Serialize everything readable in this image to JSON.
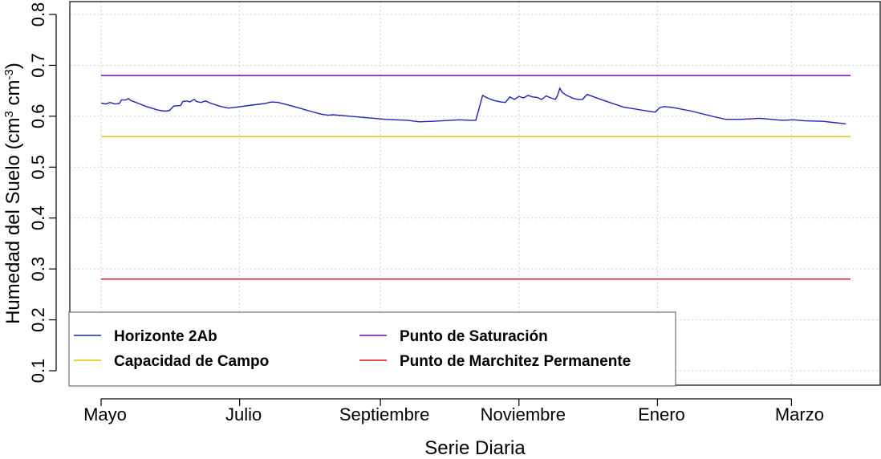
{
  "chart_data": {
    "type": "line",
    "xlabel": "Serie Diaria",
    "ylabel_parts": [
      "Humedad del Suelo (cm",
      "3",
      " cm",
      "-3",
      ")"
    ],
    "x_unit": "days since start of series",
    "x_range": [
      0,
      330
    ],
    "x_ticks": [
      {
        "day": 0,
        "label": "Mayo"
      },
      {
        "day": 61,
        "label": "Julio"
      },
      {
        "day": 123,
        "label": "Septiembre"
      },
      {
        "day": 184,
        "label": "Noviembre"
      },
      {
        "day": 245,
        "label": "Enero"
      },
      {
        "day": 304,
        "label": "Marzo"
      }
    ],
    "ylim": [
      0.07,
      0.82
    ],
    "y_ticks": [
      0.1,
      0.2,
      0.3,
      0.4,
      0.5,
      0.6,
      0.7,
      0.8
    ],
    "grid": true,
    "legend_position": "bottom-left",
    "series": [
      {
        "name": "Horizonte 2Ab",
        "color": "#1f22b8",
        "points": [
          [
            0,
            0.626
          ],
          [
            2,
            0.624
          ],
          [
            4,
            0.627
          ],
          [
            6,
            0.624
          ],
          [
            8,
            0.625
          ],
          [
            9,
            0.632
          ],
          [
            11,
            0.632
          ],
          [
            12,
            0.635
          ],
          [
            13,
            0.631
          ],
          [
            16,
            0.626
          ],
          [
            20,
            0.619
          ],
          [
            25,
            0.612
          ],
          [
            28,
            0.61
          ],
          [
            30,
            0.611
          ],
          [
            32,
            0.62
          ],
          [
            35,
            0.621
          ],
          [
            36,
            0.629
          ],
          [
            38,
            0.63
          ],
          [
            39,
            0.628
          ],
          [
            41,
            0.633
          ],
          [
            42,
            0.629
          ],
          [
            44,
            0.627
          ],
          [
            46,
            0.63
          ],
          [
            48,
            0.626
          ],
          [
            52,
            0.62
          ],
          [
            56,
            0.616
          ],
          [
            60,
            0.618
          ],
          [
            65,
            0.621
          ],
          [
            72,
            0.625
          ],
          [
            75,
            0.628
          ],
          [
            78,
            0.627
          ],
          [
            85,
            0.619
          ],
          [
            92,
            0.61
          ],
          [
            97,
            0.604
          ],
          [
            100,
            0.602
          ],
          [
            102,
            0.603
          ],
          [
            110,
            0.6
          ],
          [
            125,
            0.594
          ],
          [
            135,
            0.592
          ],
          [
            140,
            0.589
          ],
          [
            146,
            0.59
          ],
          [
            150,
            0.591
          ],
          [
            158,
            0.593
          ],
          [
            162,
            0.592
          ],
          [
            165,
            0.592
          ],
          [
            168,
            0.641
          ],
          [
            170,
            0.636
          ],
          [
            173,
            0.631
          ],
          [
            176,
            0.628
          ],
          [
            178,
            0.627
          ],
          [
            180,
            0.638
          ],
          [
            182,
            0.633
          ],
          [
            184,
            0.639
          ],
          [
            186,
            0.636
          ],
          [
            188,
            0.641
          ],
          [
            190,
            0.638
          ],
          [
            192,
            0.637
          ],
          [
            194,
            0.633
          ],
          [
            196,
            0.64
          ],
          [
            198,
            0.636
          ],
          [
            200,
            0.633
          ],
          [
            201,
            0.641
          ],
          [
            202,
            0.655
          ],
          [
            203,
            0.647
          ],
          [
            205,
            0.641
          ],
          [
            208,
            0.635
          ],
          [
            210,
            0.633
          ],
          [
            212,
            0.633
          ],
          [
            214,
            0.643
          ],
          [
            217,
            0.638
          ],
          [
            222,
            0.63
          ],
          [
            230,
            0.618
          ],
          [
            238,
            0.612
          ],
          [
            244,
            0.608
          ],
          [
            246,
            0.617
          ],
          [
            248,
            0.619
          ],
          [
            252,
            0.617
          ],
          [
            260,
            0.61
          ],
          [
            270,
            0.599
          ],
          [
            275,
            0.594
          ],
          [
            282,
            0.594
          ],
          [
            290,
            0.596
          ],
          [
            300,
            0.592
          ],
          [
            305,
            0.593
          ],
          [
            310,
            0.591
          ],
          [
            318,
            0.59
          ],
          [
            322,
            0.588
          ],
          [
            326,
            0.586
          ],
          [
            328,
            0.585
          ]
        ]
      },
      {
        "name": "Capacidad de Campo",
        "color": "#e6c000",
        "constant": 0.56
      },
      {
        "name": "Punto de Saturación",
        "color": "#8000c8",
        "constant": 0.68
      },
      {
        "name": "Punto de Marchitez Permanente",
        "color": "#e01010",
        "constant": 0.28
      }
    ],
    "legend_order": [
      "Horizonte 2Ab",
      "Punto de Saturación",
      "Capacidad de Campo",
      "Punto de Marchitez Permanente"
    ]
  }
}
